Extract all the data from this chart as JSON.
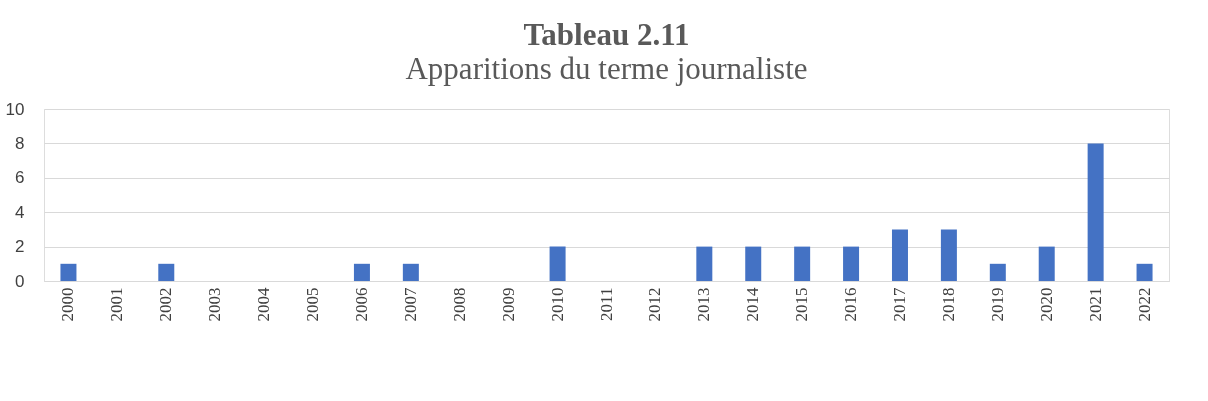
{
  "chart_data": {
    "type": "bar",
    "title": "Tableau 2.11",
    "subtitle": "Apparitions du terme journaliste",
    "categories": [
      "2000",
      "2001",
      "2002",
      "2003",
      "2004",
      "2005",
      "2006",
      "2007",
      "2008",
      "2009",
      "2010",
      "2011",
      "2012",
      "2013",
      "2014",
      "2015",
      "2016",
      "2017",
      "2018",
      "2019",
      "2020",
      "2021",
      "2022"
    ],
    "values": [
      1,
      0,
      1,
      0,
      0,
      0,
      1,
      1,
      0,
      0,
      2,
      0,
      0,
      2,
      2,
      2,
      2,
      3,
      3,
      1,
      2,
      8,
      1
    ],
    "color": "#4472c4",
    "ylim": [
      0,
      10
    ],
    "yticks": [
      0,
      2,
      4,
      6,
      8,
      10
    ],
    "grid": "y"
  }
}
